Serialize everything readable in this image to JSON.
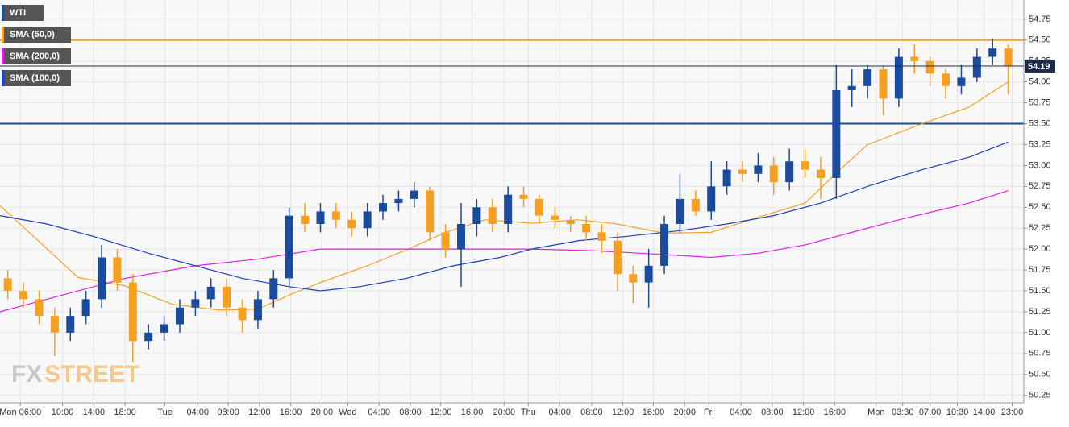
{
  "chart_data": {
    "type": "candlestick",
    "xlim": [
      0,
      131
    ],
    "ylim": [
      50.16,
      54.98
    ],
    "grid": true,
    "up_color": "#1a4b9c",
    "down_color": "#f5a023",
    "xticks": [
      {
        "value": 2.6,
        "label": "Mon 06:00"
      },
      {
        "value": 8.0,
        "label": "10:00"
      },
      {
        "value": 12.0,
        "label": "14:00"
      },
      {
        "value": 16.0,
        "label": "18:00"
      },
      {
        "value": 21.1,
        "label": "Tue"
      },
      {
        "value": 25.3,
        "label": "04:00"
      },
      {
        "value": 29.2,
        "label": "08:00"
      },
      {
        "value": 33.2,
        "label": "12:00"
      },
      {
        "value": 37.2,
        "label": "16:00"
      },
      {
        "value": 41.2,
        "label": "20:00"
      },
      {
        "value": 44.5,
        "label": "Wed"
      },
      {
        "value": 48.5,
        "label": "04:00"
      },
      {
        "value": 52.5,
        "label": "08:00"
      },
      {
        "value": 56.4,
        "label": "12:00"
      },
      {
        "value": 60.4,
        "label": "16:00"
      },
      {
        "value": 64.5,
        "label": "20:00"
      },
      {
        "value": 67.6,
        "label": "Thu"
      },
      {
        "value": 71.6,
        "label": "04:00"
      },
      {
        "value": 75.7,
        "label": "08:00"
      },
      {
        "value": 79.7,
        "label": "12:00"
      },
      {
        "value": 83.6,
        "label": "16:00"
      },
      {
        "value": 87.6,
        "label": "20:00"
      },
      {
        "value": 90.7,
        "label": "Fri"
      },
      {
        "value": 94.8,
        "label": "04:00"
      },
      {
        "value": 98.8,
        "label": "08:00"
      },
      {
        "value": 102.8,
        "label": "12:00"
      },
      {
        "value": 106.8,
        "label": "16:00"
      },
      {
        "value": 112.1,
        "label": "Mon"
      },
      {
        "value": 115.5,
        "label": "03:30"
      },
      {
        "value": 119.0,
        "label": "07:00"
      },
      {
        "value": 122.5,
        "label": "10:30"
      },
      {
        "value": 125.9,
        "label": "14:00"
      },
      {
        "value": 129.5,
        "label": "23:00"
      }
    ],
    "yticks": [
      50.25,
      {
        "value": 50.5,
        "label": "50.50"
      },
      50.75,
      {
        "value": 51,
        "label": "51.00"
      },
      51.25,
      {
        "value": 51.5,
        "label": "51.50"
      },
      51.75,
      {
        "value": 52,
        "label": "52.00"
      },
      52.25,
      {
        "value": 52.5,
        "label": "52.50"
      },
      52.75,
      {
        "value": 53,
        "label": "53.00"
      },
      53.25,
      {
        "value": 53.5,
        "label": "53.50"
      },
      53.75,
      {
        "value": 54,
        "label": "54.00"
      },
      54.25,
      {
        "value": 54.5,
        "label": "54.50"
      },
      54.75
    ],
    "series": [
      {
        "name": "WTI",
        "color": "#1a4b9c",
        "x": [
          1,
          3,
          5,
          7,
          9,
          11,
          13,
          15,
          17,
          19,
          21,
          23,
          25,
          27,
          29,
          31,
          33,
          35,
          37,
          39,
          41,
          43,
          45,
          47,
          49,
          51,
          53,
          55,
          57,
          59,
          61,
          63,
          65,
          67,
          69,
          71,
          73,
          75,
          77,
          79,
          81,
          83,
          85,
          87,
          89,
          91,
          93,
          95,
          97,
          99,
          101,
          103,
          105,
          107,
          109,
          111,
          113,
          115,
          117,
          119,
          121,
          123,
          125,
          127,
          129
        ],
        "open": [
          51.65,
          51.5,
          51.4,
          51.2,
          51.0,
          51.2,
          51.4,
          51.9,
          51.6,
          50.9,
          51.0,
          51.1,
          51.3,
          51.4,
          51.55,
          51.3,
          51.15,
          51.4,
          51.65,
          52.4,
          52.3,
          52.45,
          52.35,
          52.25,
          52.45,
          52.55,
          52.6,
          52.7,
          52.2,
          52.0,
          52.3,
          52.5,
          52.3,
          52.65,
          52.6,
          52.4,
          52.35,
          52.3,
          52.2,
          52.1,
          51.7,
          51.6,
          51.8,
          52.3,
          52.6,
          52.45,
          52.75,
          52.95,
          52.9,
          53.0,
          52.8,
          53.05,
          52.95,
          52.85,
          53.9,
          53.95,
          54.15,
          53.8,
          54.3,
          54.25,
          54.1,
          53.95,
          54.05,
          54.3,
          54.4
        ],
        "high": [
          51.75,
          51.6,
          51.5,
          51.3,
          51.3,
          51.5,
          52.05,
          52.0,
          51.7,
          51.1,
          51.2,
          51.4,
          51.5,
          51.65,
          51.65,
          51.4,
          51.5,
          51.75,
          52.5,
          52.55,
          52.55,
          52.55,
          52.45,
          52.55,
          52.65,
          52.7,
          52.8,
          52.75,
          52.3,
          52.55,
          52.6,
          52.6,
          52.75,
          52.75,
          52.65,
          52.5,
          52.4,
          52.4,
          52.3,
          52.2,
          51.8,
          52.0,
          52.4,
          52.9,
          52.7,
          53.05,
          53.05,
          53.05,
          53.15,
          53.1,
          53.2,
          53.2,
          53.1,
          54.2,
          54.15,
          54.2,
          54.2,
          54.4,
          54.45,
          54.3,
          54.15,
          54.2,
          54.4,
          54.52,
          54.45
        ],
        "low": [
          51.4,
          51.3,
          51.1,
          50.72,
          50.9,
          51.1,
          51.3,
          51.5,
          50.65,
          50.8,
          50.9,
          51.0,
          51.2,
          51.3,
          51.2,
          51.0,
          51.05,
          51.3,
          51.55,
          52.2,
          52.2,
          52.25,
          52.15,
          52.15,
          52.35,
          52.45,
          52.5,
          52.1,
          51.9,
          51.55,
          52.15,
          52.2,
          52.2,
          52.5,
          52.3,
          52.25,
          52.2,
          52.1,
          51.95,
          51.5,
          51.35,
          51.3,
          51.7,
          52.2,
          52.4,
          52.35,
          52.65,
          52.8,
          52.8,
          52.65,
          52.7,
          52.85,
          52.6,
          52.6,
          53.7,
          53.8,
          53.6,
          53.7,
          54.1,
          53.95,
          53.8,
          53.85,
          54.0,
          54.2,
          53.85
        ],
        "close": [
          51.5,
          51.4,
          51.2,
          51.0,
          51.2,
          51.4,
          51.9,
          51.6,
          50.9,
          51.0,
          51.1,
          51.3,
          51.4,
          51.55,
          51.3,
          51.15,
          51.4,
          51.65,
          52.4,
          52.3,
          52.45,
          52.35,
          52.25,
          52.45,
          52.55,
          52.6,
          52.7,
          52.2,
          52.0,
          52.3,
          52.5,
          52.3,
          52.65,
          52.6,
          52.4,
          52.35,
          52.3,
          52.2,
          52.1,
          51.7,
          51.6,
          51.8,
          52.3,
          52.6,
          52.45,
          52.75,
          52.95,
          52.9,
          53.0,
          52.8,
          53.05,
          52.95,
          52.85,
          53.9,
          53.95,
          54.15,
          53.8,
          54.3,
          54.25,
          54.1,
          53.95,
          54.05,
          54.3,
          54.4,
          54.19
        ]
      },
      {
        "name": "SMA (50,0)",
        "color": "#f5a023",
        "x": [
          0,
          10,
          16,
          22,
          28,
          33,
          37,
          41,
          47,
          52,
          57,
          62,
          68,
          74,
          79,
          85,
          91,
          97,
          103,
          107,
          111,
          118,
          124,
          129
        ],
        "values": [
          52.52,
          51.66,
          51.56,
          51.34,
          51.27,
          51.28,
          51.45,
          51.6,
          51.8,
          51.99,
          52.2,
          52.35,
          52.31,
          52.35,
          52.3,
          52.19,
          52.2,
          52.38,
          52.55,
          52.91,
          53.25,
          53.5,
          53.7,
          54.0
        ]
      },
      {
        "name": "SMA (200,0)",
        "color": "#e020e0",
        "x": [
          0,
          8,
          16,
          25,
          33,
          41,
          47,
          58,
          68,
          76,
          82,
          91,
          97,
          103,
          109,
          115,
          124,
          129
        ],
        "values": [
          51.25,
          51.45,
          51.65,
          51.8,
          51.88,
          52.0,
          52.0,
          52.0,
          52.0,
          51.98,
          51.95,
          51.9,
          51.95,
          52.05,
          52.2,
          52.35,
          52.55,
          52.7
        ]
      },
      {
        "name": "SMA (100,0)",
        "color": "#2040c0",
        "x": [
          0,
          6,
          12,
          19,
          25,
          31,
          37,
          41,
          46,
          52,
          58,
          64,
          68,
          74,
          80,
          87,
          93,
          99,
          105,
          111,
          118,
          124,
          129
        ],
        "values": [
          52.4,
          52.3,
          52.15,
          51.95,
          51.8,
          51.65,
          51.55,
          51.5,
          51.55,
          51.65,
          51.8,
          51.9,
          52.0,
          52.1,
          52.15,
          52.22,
          52.3,
          52.4,
          52.55,
          52.75,
          52.95,
          53.1,
          53.28
        ]
      }
    ],
    "hlines": [
      {
        "value": 54.5,
        "color": "#f5a023"
      },
      {
        "value": 53.5,
        "color": "#1a4b9c"
      }
    ],
    "last_price": 54.19,
    "watermark": [
      "FX",
      "STREET"
    ]
  }
}
